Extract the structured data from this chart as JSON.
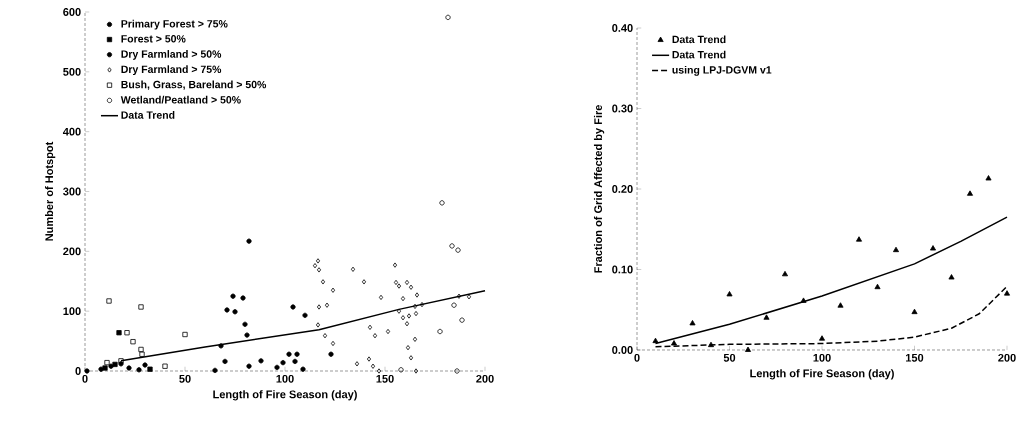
{
  "chart_data": [
    {
      "type": "scatter",
      "xlabel": "Length of Fire Season (day)",
      "ylabel": "Number of Hotspot",
      "xlim": [
        0,
        200
      ],
      "xticks": [
        0,
        50,
        100,
        150,
        200
      ],
      "ylim": [
        0,
        600
      ],
      "yticks": [
        0,
        100,
        200,
        300,
        400,
        500,
        600
      ],
      "legend": "top left",
      "grid": false,
      "series": [
        {
          "name": "Primary Forest > 75%",
          "color": "#000000",
          "marker": "circle",
          "x": [
            1,
            8,
            13,
            18,
            22,
            27,
            30
          ],
          "values": [
            0,
            3,
            8,
            12,
            5,
            2,
            10
          ]
        },
        {
          "name": "Forest > 50%",
          "color": "#000000",
          "marker": "square",
          "x": [
            17,
            32.5,
            10,
            15
          ],
          "values": [
            64,
            3,
            5,
            11
          ]
        },
        {
          "name": "Dry Farmland > 50%",
          "color": "#000000",
          "marker": "circle",
          "x": [
            82,
            74,
            79,
            71,
            75,
            80,
            81,
            104,
            110,
            68,
            70,
            82,
            65,
            88,
            96,
            102,
            106,
            105,
            99,
            109,
            123
          ],
          "values": [
            217,
            125,
            122,
            102,
            99,
            78,
            60,
            107,
            93,
            42,
            16,
            8,
            1,
            17,
            6,
            28,
            28,
            16,
            14,
            3,
            28
          ]
        },
        {
          "name": "Dry Farmland > 75%",
          "color": "#000000",
          "marker": "diamond",
          "x": [
            116.5,
            115,
            117,
            119,
            124,
            117,
            121,
            116.5,
            120,
            124,
            134,
            139.5,
            148,
            142.5,
            145,
            151.5,
            136,
            142,
            144,
            147,
            155,
            155.5,
            157,
            161,
            163,
            166,
            159,
            157,
            159,
            161,
            162,
            165.5,
            165,
            168.5,
            165,
            161.5,
            163,
            165.5,
            187,
            192
          ],
          "values": [
            184,
            176,
            169,
            149,
            135,
            107,
            110,
            77,
            59,
            46,
            170,
            149,
            123,
            73,
            59,
            66,
            12,
            20,
            8,
            0,
            177,
            148,
            142,
            148,
            140,
            127,
            121,
            100,
            89,
            79,
            92,
            96,
            108,
            111,
            53,
            39,
            22,
            0,
            125,
            124
          ]
        },
        {
          "name": "Bush, Grass, Bareland > 50%",
          "color": "#000000",
          "marker": "square",
          "x": [
            12,
            28,
            21,
            24,
            28,
            28.5,
            50,
            40,
            11,
            18
          ],
          "values": [
            117,
            107,
            64,
            49,
            36,
            28,
            61,
            8,
            14,
            17
          ]
        },
        {
          "name": "Wetland/Peatland > 50%",
          "color": "#000000",
          "marker": "open circle",
          "x": [
            181.5,
            178.5,
            183.5,
            186.5,
            184.5,
            188.5,
            177.5,
            186,
            158
          ],
          "values": [
            591,
            281,
            209,
            202,
            110,
            85,
            66,
            0,
            2
          ]
        },
        {
          "name": "Data Trend",
          "type": "line",
          "color": "#000000",
          "line_style": "solid",
          "x": [
            18,
            60,
            117,
            157,
            200
          ],
          "values": [
            17,
            40,
            69,
            103,
            134
          ]
        }
      ]
    },
    {
      "type": "scatter",
      "xlabel": "Length of Fire Season (day)",
      "ylabel": "Fraction of Grid Affected by Fire",
      "xlim": [
        0,
        200
      ],
      "xticks": [
        0,
        50,
        100,
        150,
        200
      ],
      "ylim": [
        0,
        0.4
      ],
      "yticks": [
        {
          "value": 0,
          "label": "0.00"
        },
        {
          "value": 0.1,
          "label": "0.10"
        },
        {
          "value": 0.2,
          "label": "0.20"
        },
        {
          "value": 0.3,
          "label": "0.30"
        },
        {
          "value": 0.4,
          "label": "0.40"
        }
      ],
      "legend": "top left",
      "grid": false,
      "series": [
        {
          "name": "Data Trend",
          "color": "#000000",
          "marker": "triangle",
          "x": [
            10,
            20,
            30,
            40,
            50,
            60,
            70,
            80,
            90,
            100,
            110,
            120,
            130,
            140,
            150,
            160,
            170,
            180,
            190,
            200
          ],
          "values": [
            0.011,
            0.008,
            0.033,
            0.006,
            0.069,
            0.0,
            0.04,
            0.094,
            0.061,
            0.014,
            0.055,
            0.137,
            0.078,
            0.124,
            0.047,
            0.126,
            0.09,
            0.194,
            0.213,
            0.07
          ]
        },
        {
          "name": "Data Trend",
          "type": "line",
          "color": "#000000",
          "line_style": "solid",
          "x": [
            10,
            50,
            100,
            150,
            175,
            200
          ],
          "values": [
            0.008,
            0.032,
            0.067,
            0.107,
            0.135,
            0.165
          ]
        },
        {
          "name": "using LPJ-DGVM v1",
          "type": "line",
          "color": "#000000",
          "line_style": "dashed",
          "x": [
            10,
            50,
            100,
            130,
            150,
            170,
            185,
            200
          ],
          "values": [
            0.004,
            0.007,
            0.008,
            0.011,
            0.016,
            0.027,
            0.045,
            0.079
          ]
        }
      ]
    }
  ]
}
